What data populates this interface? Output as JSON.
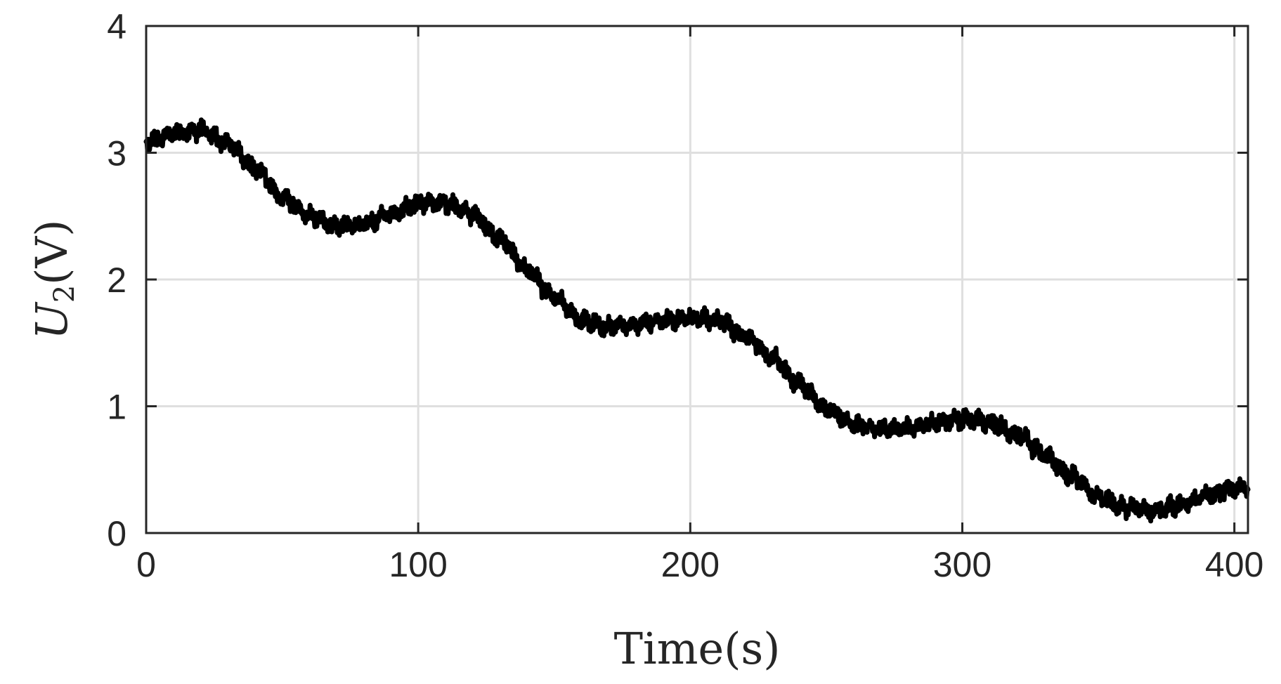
{
  "chart_data": {
    "type": "line",
    "xlabel": "Time(s)",
    "ylabel": {
      "symbol": "U",
      "subscript": "2",
      "unit": "(V)"
    },
    "xlim": [
      0,
      405
    ],
    "ylim": [
      0,
      4
    ],
    "xticks": [
      0,
      100,
      200,
      300,
      400
    ],
    "yticks": [
      0,
      1,
      2,
      3,
      4
    ],
    "grid": true,
    "series": [
      {
        "color": "#000000",
        "x": [
          0,
          10,
          20,
          30,
          40,
          50,
          60,
          70,
          80,
          90,
          100,
          110,
          120,
          130,
          140,
          150,
          160,
          170,
          180,
          190,
          200,
          210,
          220,
          230,
          240,
          250,
          260,
          270,
          280,
          290,
          300,
          310,
          320,
          330,
          340,
          350,
          360,
          370,
          380,
          390,
          400,
          405
        ],
        "y": [
          3.08,
          3.15,
          3.18,
          3.07,
          2.88,
          2.65,
          2.5,
          2.42,
          2.43,
          2.52,
          2.6,
          2.6,
          2.52,
          2.32,
          2.08,
          1.85,
          1.68,
          1.62,
          1.65,
          1.68,
          1.7,
          1.68,
          1.56,
          1.38,
          1.18,
          0.98,
          0.86,
          0.82,
          0.83,
          0.87,
          0.9,
          0.88,
          0.78,
          0.62,
          0.45,
          0.28,
          0.2,
          0.18,
          0.22,
          0.3,
          0.35,
          0.36
        ]
      }
    ]
  }
}
